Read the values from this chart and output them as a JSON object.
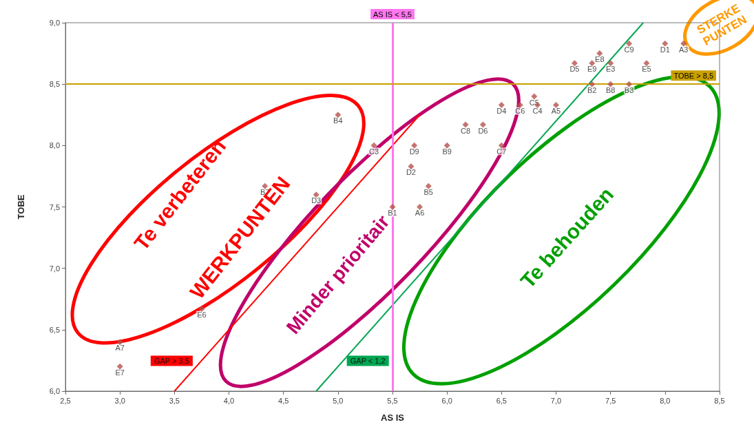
{
  "chart_data": {
    "type": "scatter",
    "xlabel": "AS IS",
    "ylabel": "TOBE",
    "x": [
      3.0,
      3.0,
      3.75,
      4.33,
      4.8,
      5.0,
      5.33,
      5.5,
      5.75,
      5.83,
      5.67,
      5.7,
      6.0,
      6.17,
      6.33,
      6.5,
      6.5,
      6.67,
      6.8,
      6.83,
      7.0,
      7.17,
      7.33,
      7.4,
      7.5,
      7.33,
      7.5,
      7.67,
      7.67,
      7.83,
      8.0,
      8.17
    ],
    "series": [
      {
        "color": "#b5524e",
        "values": [
          6.4,
          6.2,
          6.67,
          7.67,
          7.6,
          8.25,
          8.0,
          7.5,
          7.5,
          7.67,
          7.83,
          8.0,
          8.0,
          8.17,
          8.17,
          8.0,
          8.33,
          8.33,
          8.4,
          8.33,
          8.33,
          8.67,
          8.67,
          8.75,
          8.67,
          8.5,
          8.5,
          8.5,
          8.83,
          8.67,
          8.83,
          8.83
        ]
      },
      {
        "type": "line",
        "marker": "none",
        "name": "GAP > 3,5",
        "color": "#ff0000",
        "x": [
          3.5,
          5.75
        ],
        "values": [
          6.0,
          8.25
        ]
      },
      {
        "type": "line",
        "marker": "none",
        "name": "GAP < 1,2",
        "color": "#00a651",
        "x": [
          4.8,
          7.8
        ],
        "values": [
          6.0,
          9.0
        ]
      }
    ],
    "marker": "diamond",
    "grid": false,
    "legend": false,
    "xlim": [
      2.5,
      8.5
    ],
    "xticks": [
      {
        "value": 2.5,
        "label": "2,5"
      },
      {
        "value": 3,
        "label": "3,0"
      },
      {
        "value": 3.5,
        "label": "3,5"
      },
      {
        "value": 4,
        "label": "4,0"
      },
      {
        "value": 4.5,
        "label": "4,5"
      },
      {
        "value": 5,
        "label": "5,0"
      },
      {
        "value": 5.5,
        "label": "5,5"
      },
      {
        "value": 6,
        "label": "6,0"
      },
      {
        "value": 6.5,
        "label": "6,5"
      },
      {
        "value": 7,
        "label": "7,0"
      },
      {
        "value": 7.5,
        "label": "7,5"
      },
      {
        "value": 8,
        "label": "8,0"
      },
      {
        "value": 8.5,
        "label": "8,5"
      }
    ],
    "ylim": [
      6.0,
      9.0
    ],
    "yticks": [
      {
        "value": 6,
        "label": "6,0"
      },
      {
        "value": 6.5,
        "label": "6,5"
      },
      {
        "value": 7,
        "label": "7,0"
      },
      {
        "value": 7.5,
        "label": "7,5"
      },
      {
        "value": 8,
        "label": "8,0"
      },
      {
        "value": 8.5,
        "label": "8,5"
      },
      {
        "value": 9,
        "label": "9,0"
      }
    ],
    "ref_lines": [
      {
        "axis": "x",
        "value": 5.5,
        "label": "AS IS < 5,5",
        "color": "#ff77ee"
      },
      {
        "axis": "y",
        "value": 8.5,
        "label": "TOBE > 8,5",
        "color": "#c9a000"
      }
    ],
    "annotations": [
      "Te verbeteren",
      "WERKPUNTEN",
      "Minder prioritair",
      "Te behouden",
      "STERKE PUNTEN",
      {
        "text": "A7",
        "x": 3.0,
        "y": 6.4
      },
      {
        "text": "E7",
        "x": 3.0,
        "y": 6.2
      },
      {
        "text": "E6",
        "x": 3.75,
        "y": 6.67
      },
      {
        "text": "B7",
        "x": 4.33,
        "y": 7.67
      },
      {
        "text": "D3",
        "x": 4.8,
        "y": 7.6
      },
      {
        "text": "B4",
        "x": 5.0,
        "y": 8.25
      },
      {
        "text": "C3",
        "x": 5.33,
        "y": 8.0
      },
      {
        "text": "B1",
        "x": 5.5,
        "y": 7.5
      },
      {
        "text": "A6",
        "x": 5.75,
        "y": 7.5
      },
      {
        "text": "B5",
        "x": 5.83,
        "y": 7.67
      },
      {
        "text": "D2",
        "x": 5.67,
        "y": 7.83
      },
      {
        "text": "D9",
        "x": 5.7,
        "y": 8.0
      },
      {
        "text": "B9",
        "x": 6.0,
        "y": 8.0
      },
      {
        "text": "C8",
        "x": 6.17,
        "y": 8.17
      },
      {
        "text": "D6",
        "x": 6.33,
        "y": 8.17
      },
      {
        "text": "C7",
        "x": 6.5,
        "y": 8.0
      },
      {
        "text": "D4",
        "x": 6.5,
        "y": 8.33
      },
      {
        "text": "C6",
        "x": 6.67,
        "y": 8.33
      },
      {
        "text": "C5",
        "x": 6.8,
        "y": 8.4
      },
      {
        "text": "C4",
        "x": 6.83,
        "y": 8.33
      },
      {
        "text": "A5",
        "x": 7.0,
        "y": 8.33
      },
      {
        "text": "D5",
        "x": 7.17,
        "y": 8.67
      },
      {
        "text": "E9",
        "x": 7.33,
        "y": 8.67
      },
      {
        "text": "E8",
        "x": 7.4,
        "y": 8.75
      },
      {
        "text": "E3",
        "x": 7.5,
        "y": 8.67
      },
      {
        "text": "B2",
        "x": 7.33,
        "y": 8.5
      },
      {
        "text": "B8",
        "x": 7.5,
        "y": 8.5
      },
      {
        "text": "B3",
        "x": 7.67,
        "y": 8.5
      },
      {
        "text": "C9",
        "x": 7.67,
        "y": 8.83
      },
      {
        "text": "E5",
        "x": 7.83,
        "y": 8.67
      },
      {
        "text": "D1",
        "x": 8.0,
        "y": 8.83
      },
      {
        "text": "A3",
        "x": 8.17,
        "y": 8.83
      }
    ]
  }
}
